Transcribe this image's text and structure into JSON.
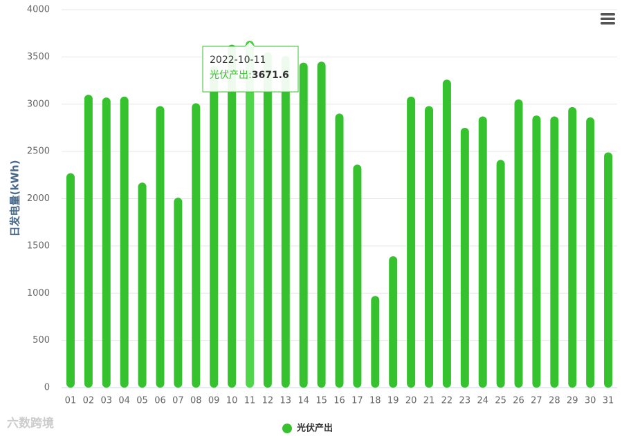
{
  "chart_data": {
    "type": "bar",
    "y_label": "日发电量(kWh)",
    "categories": [
      "01",
      "02",
      "03",
      "04",
      "05",
      "06",
      "07",
      "08",
      "09",
      "10",
      "11",
      "12",
      "13",
      "14",
      "15",
      "16",
      "17",
      "18",
      "19",
      "20",
      "21",
      "22",
      "23",
      "24",
      "25",
      "26",
      "27",
      "28",
      "29",
      "30",
      "31"
    ],
    "series": [
      {
        "name": "光伏产出",
        "color": "#36c22e",
        "highlight_color": "#4fd64a",
        "values": [
          2270,
          3100,
          3070,
          3080,
          2170,
          2980,
          2010,
          3010,
          3400,
          3630,
          3671.6,
          3550,
          3510,
          3440,
          3450,
          2900,
          2360,
          970,
          1390,
          3080,
          2980,
          3260,
          2750,
          2870,
          2410,
          3050,
          2880,
          2870,
          2970,
          2860,
          2490
        ]
      }
    ],
    "ylim": [
      0,
      4000
    ],
    "yticks": [
      0,
      500,
      1000,
      1500,
      2000,
      2500,
      3000,
      3500,
      4000
    ],
    "grid": true,
    "tooltip": {
      "index": 10,
      "title": "2022-10-11",
      "series_label": "光伏产出:"
    },
    "watermark": "六数跨境"
  }
}
